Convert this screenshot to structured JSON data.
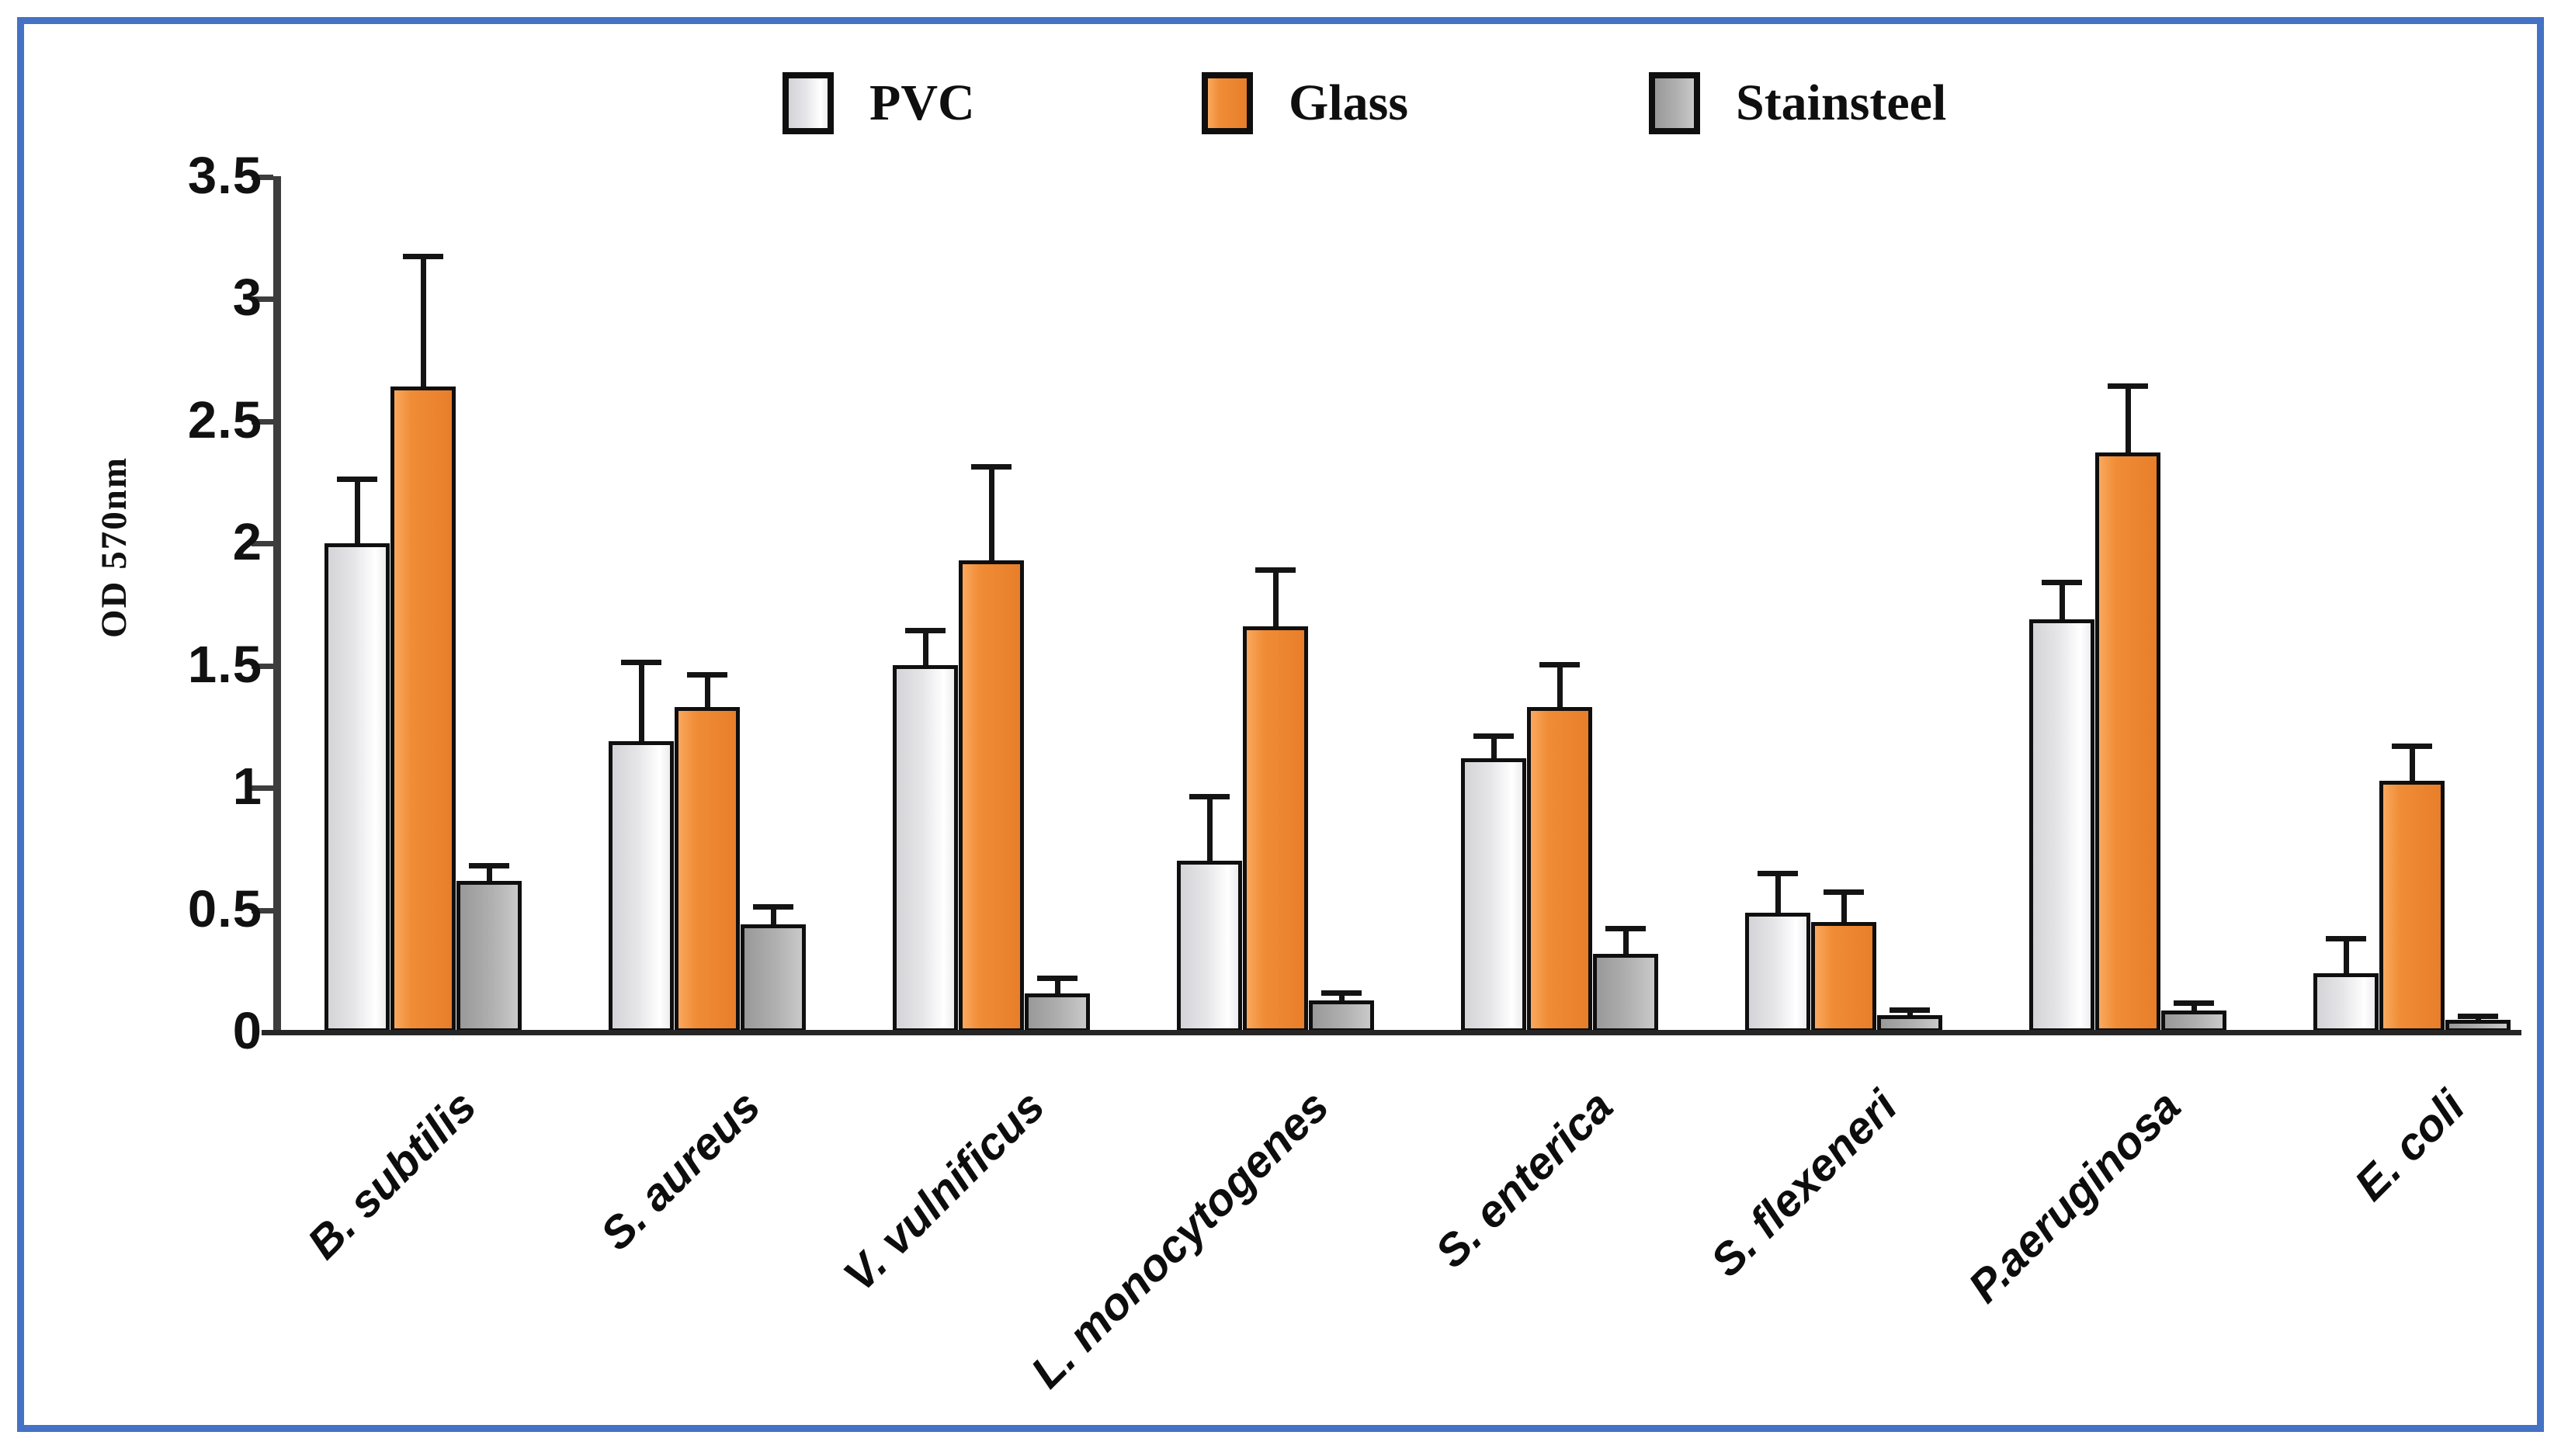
{
  "frame_color": "#4472C4",
  "chart_data": {
    "type": "bar",
    "title": "",
    "xlabel": "",
    "ylabel": "OD 570nm",
    "ylim": [
      0,
      3.5
    ],
    "ytick_step": 0.5,
    "ytick_labels": [
      "3.5",
      "3",
      "2.5",
      "2",
      "1.5",
      "1",
      "0.5",
      "0"
    ],
    "grid": false,
    "legend_position": "top",
    "error_bars": "upper",
    "categories": [
      "B. subtilis",
      "S. aureus",
      "V. vulnificus",
      "L. monocytogenes",
      "S. enterica",
      "S. flexeneri",
      "P.aeruginosa",
      "E. coli"
    ],
    "series": [
      {
        "name": "PVC",
        "color": "#e3e3e6",
        "values": [
          2.0,
          1.19,
          1.5,
          0.7,
          1.12,
          0.49,
          1.69,
          0.24
        ],
        "errors": [
          0.26,
          0.32,
          0.14,
          0.26,
          0.09,
          0.16,
          0.15,
          0.14
        ]
      },
      {
        "name": "Glass",
        "color": "#ed8733",
        "values": [
          2.64,
          1.33,
          1.93,
          1.66,
          1.33,
          0.45,
          2.37,
          1.03
        ],
        "errors": [
          0.53,
          0.13,
          0.38,
          0.23,
          0.17,
          0.12,
          0.27,
          0.14
        ]
      },
      {
        "name": "Stainsteel",
        "color": "#ababab",
        "values": [
          0.62,
          0.44,
          0.16,
          0.13,
          0.32,
          0.07,
          0.09,
          0.05
        ],
        "errors": [
          0.06,
          0.07,
          0.06,
          0.03,
          0.1,
          0.02,
          0.03,
          0.01
        ]
      }
    ]
  }
}
